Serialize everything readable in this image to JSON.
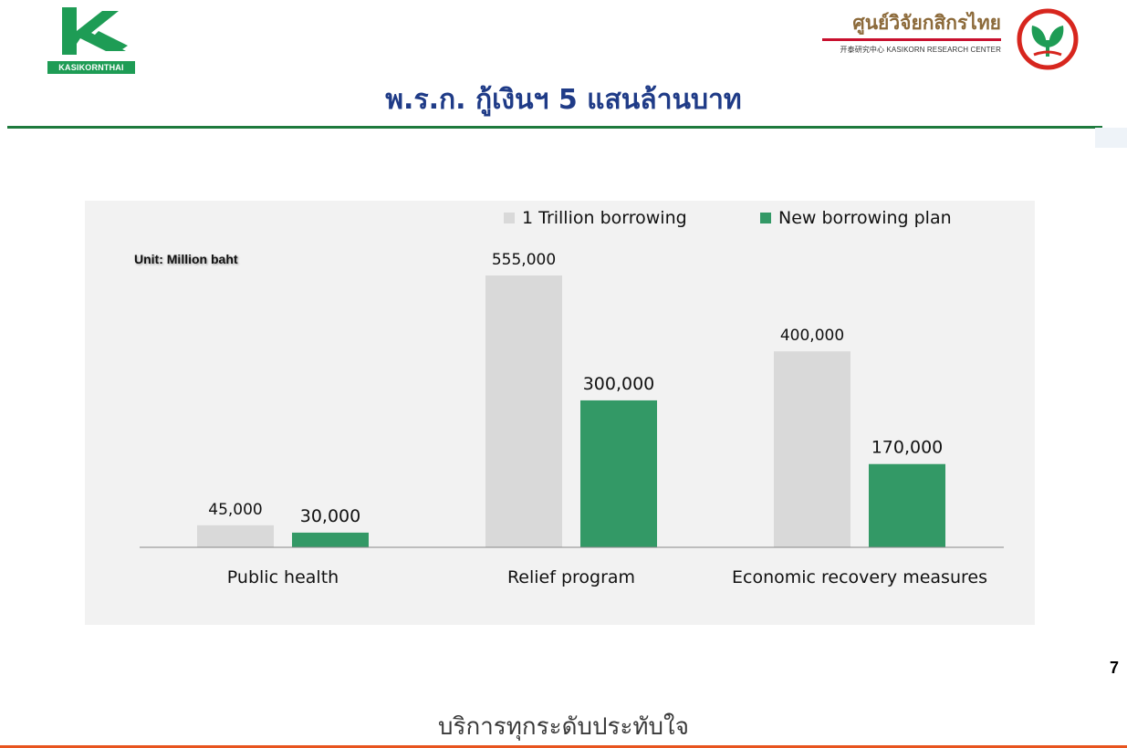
{
  "header": {
    "left_logo_text": "KASIKORNTHAI",
    "kr_title_thai": "ศูนย์วิจัยกสิกรไทย",
    "kr_subtitle": "开泰研究中心 KASIKORN RESEARCH CENTER",
    "slide_title": "พ.ร.ก. กู้เงินฯ 5 แสนล้านบาท"
  },
  "page_number": "7",
  "footer": {
    "tagline": "บริการทุกระดับประทับใจ"
  },
  "colors": {
    "series_1": "#d9d9d9",
    "series_2": "#339966",
    "title": "#1f3b87",
    "rule_green": "#1e7a3d",
    "rule_orange": "#e8541e",
    "panel_bg": "#f2f2f2"
  },
  "chart_data": {
    "type": "bar",
    "unit_label": "Unit: Million baht",
    "categories": [
      "Public health",
      "Relief program",
      "Economic recovery measures"
    ],
    "series": [
      {
        "name": "1 Trillion borrowing",
        "values": [
          45000,
          555000,
          400000
        ],
        "labels": [
          "45,000",
          "555,000",
          "400,000"
        ]
      },
      {
        "name": "New borrowing plan",
        "values": [
          30000,
          300000,
          170000
        ],
        "labels": [
          "30,000",
          "300,000",
          "170,000"
        ]
      }
    ],
    "ylim": [
      0,
      555000
    ],
    "legend": "top",
    "grid": false
  }
}
